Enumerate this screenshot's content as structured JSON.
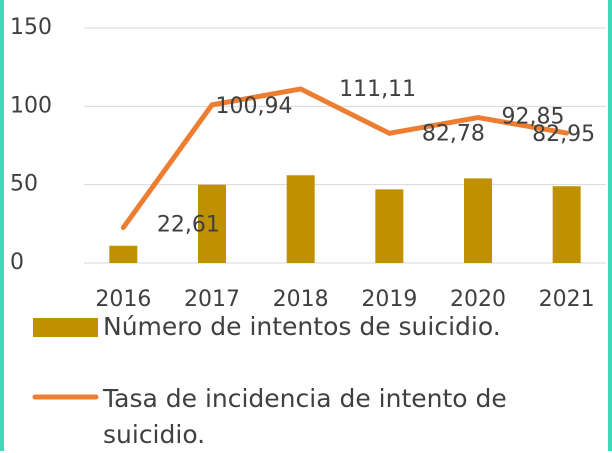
{
  "chart_data": {
    "type": "bar-line",
    "categories": [
      "2016",
      "2017",
      "2018",
      "2019",
      "2020",
      "2021"
    ],
    "series": [
      {
        "name": "Número de intentos de suicidio.",
        "type": "bar",
        "color": "#bf9000",
        "values": [
          11,
          50,
          56,
          47,
          54,
          49
        ]
      },
      {
        "name": "Tasa de incidencia de intento de suicidio.",
        "type": "line",
        "color": "#ed7d31",
        "values": [
          22.61,
          100.94,
          111.11,
          82.78,
          92.85,
          82.95
        ],
        "value_labels": [
          "22,61",
          "100,94",
          "111,11",
          "82,78",
          "92,85",
          "82,95"
        ]
      }
    ],
    "ylim": [
      0,
      150
    ],
    "yticks": [
      0,
      50,
      100,
      150
    ],
    "grid": true
  }
}
